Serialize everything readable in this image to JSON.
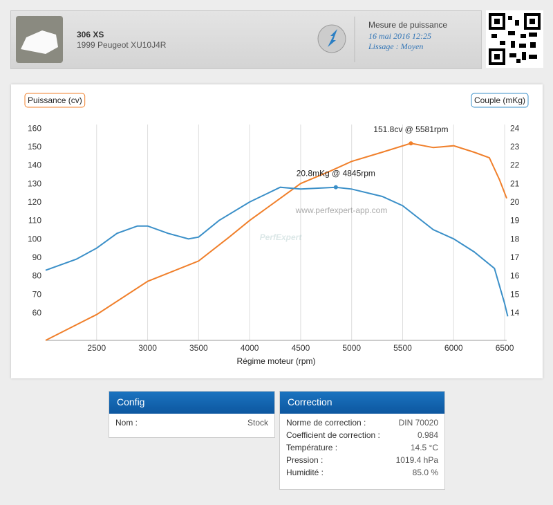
{
  "header": {
    "title": "306 XS",
    "subtitle": "1999 Peugeot XU10J4R",
    "measure_title": "Mesure de puissance",
    "date": "16 mai 2016 12:25",
    "smoothing": "Lissage : Moyen"
  },
  "chart_data": {
    "type": "line",
    "watermark": "PerfExpert",
    "watermark_url": "www.perfexpert-app.com",
    "xlabel": "Régime moteur (rpm)",
    "ylabel": "Puissance (cv)",
    "y2label": "Couple (mKg)",
    "xlim": [
      2000,
      6520
    ],
    "ylim": [
      45,
      162
    ],
    "y2lim": [
      12.5,
      24.2
    ],
    "xticks": [
      2500,
      3000,
      3500,
      4000,
      4500,
      5000,
      5500,
      6000,
      6500
    ],
    "yticks": [
      60,
      70,
      80,
      90,
      100,
      110,
      120,
      130,
      140,
      150,
      160
    ],
    "y2ticks": [
      14,
      15,
      16,
      17,
      18,
      19,
      20,
      21,
      22,
      23,
      24
    ],
    "grid": "x",
    "series": [
      {
        "name": "Puissance (cv)",
        "color": "#f07f2a",
        "x": [
          2000,
          2500,
          3000,
          3500,
          3800,
          4000,
          4300,
          4500,
          4800,
          5000,
          5300,
          5581,
          5800,
          6000,
          6200,
          6350,
          6450,
          6520
        ],
        "values": [
          45,
          59,
          77,
          88,
          101,
          110,
          122,
          130,
          137,
          142,
          147,
          151.8,
          149.5,
          150.5,
          147,
          144,
          132,
          122
        ]
      },
      {
        "name": "Couple (mKg)",
        "color": "#3a8fc8",
        "axis": "y2",
        "x": [
          2000,
          2300,
          2500,
          2700,
          2900,
          3000,
          3200,
          3400,
          3500,
          3700,
          4000,
          4300,
          4500,
          4845,
          5000,
          5300,
          5500,
          5800,
          6000,
          6200,
          6400,
          6500,
          6530
        ],
        "values": [
          16.3,
          16.9,
          17.5,
          18.3,
          18.7,
          18.7,
          18.3,
          18.0,
          18.1,
          19.0,
          20.0,
          20.8,
          20.7,
          20.8,
          20.7,
          20.3,
          19.8,
          18.5,
          18.0,
          17.3,
          16.4,
          14.5,
          13.8
        ]
      }
    ],
    "annotations": [
      {
        "text": "151.8cv @ 5581rpm",
        "series": 0,
        "index": 11
      },
      {
        "text": "20.8mKg @ 4845rpm",
        "series": 1,
        "index": 13
      }
    ]
  },
  "config": {
    "title": "Config",
    "rows": [
      [
        "Nom :",
        "Stock"
      ]
    ]
  },
  "correction": {
    "title": "Correction",
    "rows": [
      [
        "Norme de correction :",
        "DIN 70020"
      ],
      [
        "Coefficient de correction :",
        "0.984"
      ],
      [
        "Température :",
        "14.5 °C"
      ],
      [
        "Pression :",
        "1019.4 hPa"
      ],
      [
        "Humidité :",
        "85.0 %"
      ]
    ]
  }
}
